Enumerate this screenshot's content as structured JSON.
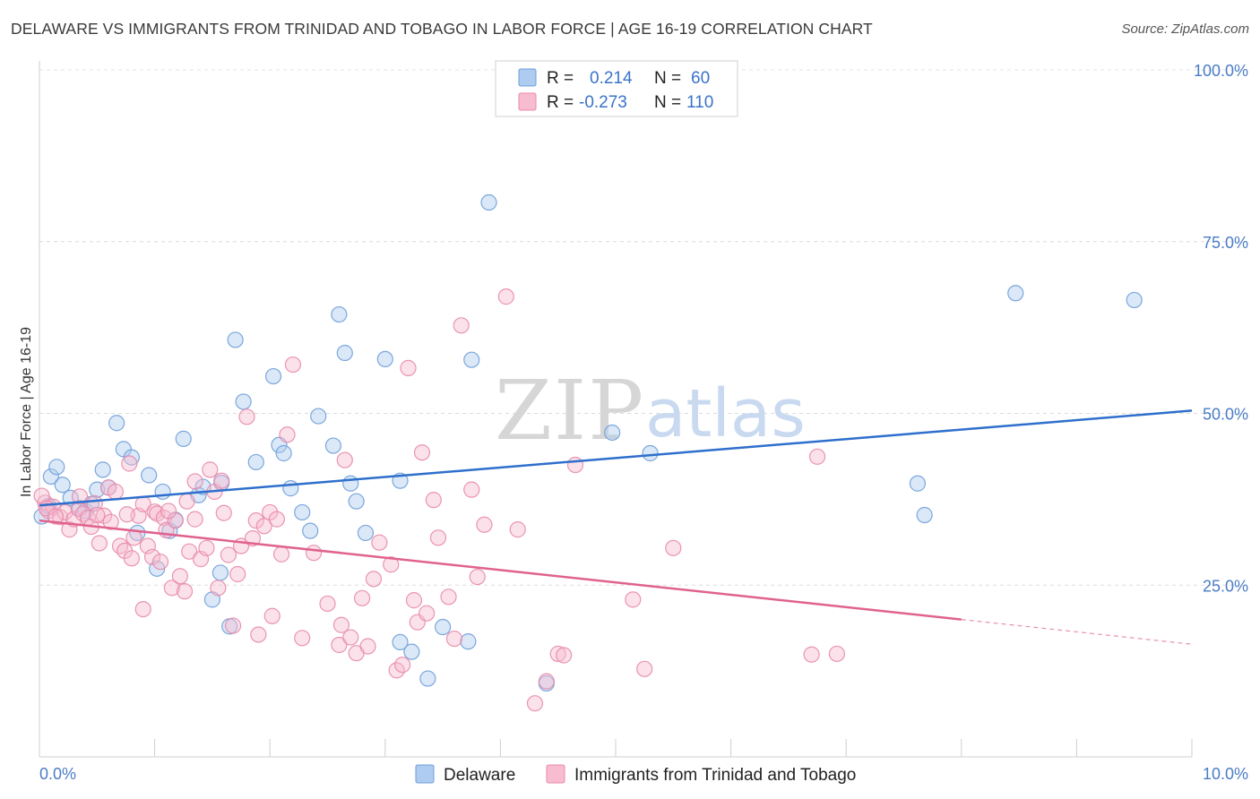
{
  "header": {
    "title": "DELAWARE VS IMMIGRANTS FROM TRINIDAD AND TOBAGO IN LABOR FORCE | AGE 16-19 CORRELATION CHART",
    "source": "Source: ZipAtlas.com"
  },
  "watermark": {
    "part1": "ZIP",
    "part2": "atlas"
  },
  "legend": {
    "rows": [
      {
        "r_label": "R =",
        "r_value": "0.214",
        "n_label": "N =",
        "n_value": "60",
        "color": "#aecbf0",
        "border": "#6f9fd8"
      },
      {
        "r_label": "R =",
        "r_value": "-0.273",
        "n_label": "N =",
        "n_value": "110",
        "color": "#f7bcd0",
        "border": "#e88aaa"
      }
    ]
  },
  "bottom_legend": [
    {
      "label": "Delaware",
      "color": "#aecbf0",
      "border": "#6f9fd8"
    },
    {
      "label": "Immigrants from Trinidad and Tobago",
      "color": "#f7bcd0",
      "border": "#e88aaa"
    }
  ],
  "chart_data": {
    "type": "scatter",
    "ylabel": "In Labor Force | Age 16-19",
    "xlim": [
      0,
      10
    ],
    "ylim": [
      0,
      102
    ],
    "x_tick_labels": [
      "0.0%",
      "10.0%"
    ],
    "y_ticks": [
      25,
      50,
      75,
      100
    ],
    "y_tick_labels": [
      "25.0%",
      "50.0%",
      "75.0%",
      "100.0%"
    ],
    "grid": "horizontal dashed",
    "series": [
      {
        "name": "Delaware",
        "color": "#6f9fd8",
        "fill": "#aecbf0",
        "trend": {
          "x": [
            0,
            10
          ],
          "y": [
            36.6,
            50.4
          ],
          "color": "#2e6fcc",
          "dashed_from": null
        },
        "points": [
          [
            0.02,
            35.0
          ],
          [
            0.1,
            40.8
          ],
          [
            0.15,
            42.2
          ],
          [
            0.2,
            39.6
          ],
          [
            0.27,
            37.7
          ],
          [
            0.35,
            36.2
          ],
          [
            0.4,
            35.8
          ],
          [
            0.45,
            36.8
          ],
          [
            0.5,
            38.9
          ],
          [
            0.55,
            41.8
          ],
          [
            0.6,
            39.2
          ],
          [
            0.67,
            48.6
          ],
          [
            0.73,
            44.8
          ],
          [
            0.8,
            43.6
          ],
          [
            0.85,
            32.6
          ],
          [
            0.95,
            41.0
          ],
          [
            1.02,
            27.4
          ],
          [
            1.07,
            38.6
          ],
          [
            1.13,
            32.9
          ],
          [
            1.18,
            34.5
          ],
          [
            1.25,
            46.3
          ],
          [
            1.38,
            38.1
          ],
          [
            1.42,
            39.3
          ],
          [
            1.5,
            22.9
          ],
          [
            1.57,
            26.8
          ],
          [
            1.58,
            39.9
          ],
          [
            1.65,
            19.0
          ],
          [
            1.7,
            60.7
          ],
          [
            1.77,
            51.7
          ],
          [
            1.88,
            42.9
          ],
          [
            2.03,
            55.4
          ],
          [
            2.08,
            45.4
          ],
          [
            2.12,
            44.2
          ],
          [
            2.18,
            39.1
          ],
          [
            2.28,
            35.6
          ],
          [
            2.35,
            32.9
          ],
          [
            2.42,
            49.6
          ],
          [
            2.55,
            45.3
          ],
          [
            2.6,
            64.4
          ],
          [
            2.65,
            58.8
          ],
          [
            2.7,
            39.8
          ],
          [
            2.75,
            37.2
          ],
          [
            2.83,
            32.6
          ],
          [
            3.0,
            57.9
          ],
          [
            3.13,
            40.2
          ],
          [
            3.13,
            16.7
          ],
          [
            3.23,
            15.3
          ],
          [
            3.37,
            11.4
          ],
          [
            3.5,
            18.9
          ],
          [
            3.72,
            16.8
          ],
          [
            3.75,
            57.8
          ],
          [
            3.9,
            80.7
          ],
          [
            4.4,
            10.7
          ],
          [
            4.97,
            47.2
          ],
          [
            5.3,
            44.2
          ],
          [
            7.62,
            39.8
          ],
          [
            7.68,
            35.2
          ],
          [
            8.47,
            67.5
          ],
          [
            9.5,
            66.5
          ],
          [
            0.08,
            36.5
          ]
        ]
      },
      {
        "name": "Immigrants from Trinidad and Tobago",
        "color": "#e88aaa",
        "fill": "#f7bcd0",
        "trend": {
          "x": [
            0,
            8.0
          ],
          "y": [
            34.4,
            20.0
          ],
          "color": "#e0628f",
          "dashed_to": [
            10,
            16.4
          ]
        },
        "points": [
          [
            0.05,
            37.0
          ],
          [
            0.08,
            35.8
          ],
          [
            0.12,
            36.4
          ],
          [
            0.18,
            34.9
          ],
          [
            0.22,
            35.6
          ],
          [
            0.26,
            33.1
          ],
          [
            0.3,
            34.6
          ],
          [
            0.34,
            36.1
          ],
          [
            0.38,
            35.4
          ],
          [
            0.42,
            34.8
          ],
          [
            0.45,
            33.5
          ],
          [
            0.48,
            36.9
          ],
          [
            0.52,
            31.1
          ],
          [
            0.56,
            35.1
          ],
          [
            0.6,
            39.2
          ],
          [
            0.62,
            34.2
          ],
          [
            0.66,
            38.6
          ],
          [
            0.7,
            30.7
          ],
          [
            0.74,
            30.0
          ],
          [
            0.78,
            42.7
          ],
          [
            0.8,
            28.9
          ],
          [
            0.82,
            31.9
          ],
          [
            0.86,
            35.1
          ],
          [
            0.9,
            36.8
          ],
          [
            0.9,
            21.5
          ],
          [
            0.94,
            30.7
          ],
          [
            0.98,
            29.1
          ],
          [
            1.0,
            35.7
          ],
          [
            1.02,
            35.4
          ],
          [
            1.05,
            28.4
          ],
          [
            1.08,
            34.8
          ],
          [
            1.1,
            33.0
          ],
          [
            1.15,
            24.6
          ],
          [
            1.18,
            34.4
          ],
          [
            1.22,
            26.3
          ],
          [
            1.26,
            24.1
          ],
          [
            1.28,
            37.2
          ],
          [
            1.3,
            29.9
          ],
          [
            1.35,
            34.6
          ],
          [
            1.35,
            40.1
          ],
          [
            1.4,
            28.8
          ],
          [
            1.45,
            30.4
          ],
          [
            1.48,
            41.8
          ],
          [
            1.52,
            38.6
          ],
          [
            1.55,
            24.6
          ],
          [
            1.58,
            40.2
          ],
          [
            1.6,
            35.5
          ],
          [
            1.64,
            29.4
          ],
          [
            1.68,
            19.1
          ],
          [
            1.72,
            26.6
          ],
          [
            1.75,
            30.7
          ],
          [
            1.8,
            49.5
          ],
          [
            1.85,
            31.8
          ],
          [
            1.88,
            34.4
          ],
          [
            1.9,
            17.8
          ],
          [
            1.95,
            33.6
          ],
          [
            2.0,
            35.6
          ],
          [
            2.02,
            20.5
          ],
          [
            2.06,
            34.6
          ],
          [
            2.1,
            29.5
          ],
          [
            2.15,
            46.9
          ],
          [
            2.2,
            57.1
          ],
          [
            2.28,
            17.3
          ],
          [
            2.38,
            29.7
          ],
          [
            2.5,
            22.3
          ],
          [
            2.6,
            16.3
          ],
          [
            2.62,
            19.2
          ],
          [
            2.65,
            43.2
          ],
          [
            2.7,
            17.4
          ],
          [
            2.75,
            15.1
          ],
          [
            2.8,
            23.1
          ],
          [
            2.85,
            16.1
          ],
          [
            2.9,
            25.9
          ],
          [
            2.95,
            31.2
          ],
          [
            3.05,
            28.0
          ],
          [
            3.1,
            12.6
          ],
          [
            3.15,
            13.4
          ],
          [
            3.2,
            56.6
          ],
          [
            3.25,
            22.8
          ],
          [
            3.28,
            19.6
          ],
          [
            3.32,
            44.3
          ],
          [
            3.36,
            20.9
          ],
          [
            3.42,
            37.4
          ],
          [
            3.46,
            31.9
          ],
          [
            3.55,
            23.3
          ],
          [
            3.6,
            17.2
          ],
          [
            3.66,
            62.8
          ],
          [
            3.75,
            38.9
          ],
          [
            3.8,
            26.2
          ],
          [
            3.86,
            33.8
          ],
          [
            4.05,
            67.0
          ],
          [
            4.15,
            33.1
          ],
          [
            4.3,
            7.8
          ],
          [
            4.4,
            11.0
          ],
          [
            4.5,
            15.0
          ],
          [
            4.55,
            14.8
          ],
          [
            4.65,
            42.5
          ],
          [
            5.15,
            22.9
          ],
          [
            5.25,
            12.8
          ],
          [
            5.5,
            30.4
          ],
          [
            6.7,
            14.9
          ],
          [
            6.75,
            43.7
          ],
          [
            6.92,
            15.0
          ],
          [
            0.02,
            38.0
          ],
          [
            0.06,
            36.2
          ],
          [
            0.14,
            35.0
          ],
          [
            0.35,
            37.9
          ],
          [
            0.5,
            35.2
          ],
          [
            0.76,
            35.3
          ],
          [
            1.12,
            35.8
          ]
        ]
      }
    ]
  }
}
